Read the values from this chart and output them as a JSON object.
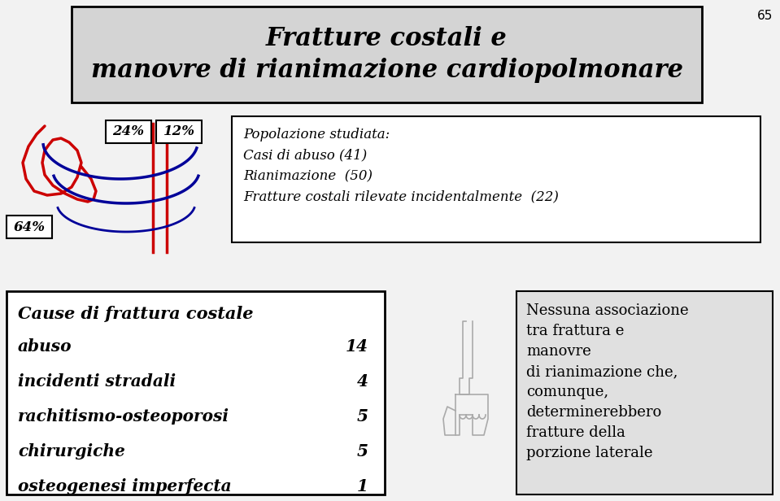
{
  "title_line1": "Fratture costali e",
  "title_line2": "manovre di rianimazione cardiopolmonare",
  "page_number": "65",
  "pct_24": "24%",
  "pct_12": "12%",
  "pct_64": "64%",
  "population_text": "Popolazione studiata:\nCasi di abuso (41)\nRianimazione  (50)\nFratture costali rilevate incidentalmente  (22)",
  "cause_title": "Cause di frattura costale",
  "causes": [
    "abuso",
    "incidenti stradali",
    "rachitismo-osteoporosi",
    "chirurgiche",
    "osteogenesi imperfecta"
  ],
  "cause_values": [
    "14",
    "4",
    "5",
    "5",
    "1"
  ],
  "right_text": "Nessuna associazione\ntra frattura e\nmanovre\ndi rianimazione che,\ncomunque,\ndeterminerebbero\nfratture della\nporzione laterale",
  "bg_color": "#f2f2f2",
  "title_bg": "#d4d4d4",
  "white": "#ffffff",
  "right_box_bg": "#e0e0e0",
  "black": "#000000"
}
